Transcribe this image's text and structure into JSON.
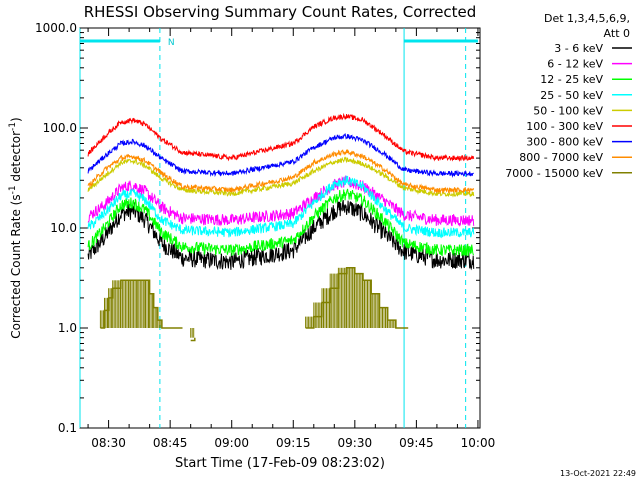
{
  "chart_data": {
    "type": "line",
    "title": "RHESSI Observing Summary Count Rates, Corrected",
    "xlabel": "Start Time (17-Feb-09 08:23:02)",
    "ylabel_main": "Corrected Count Rate (s",
    "ylabel_sup1": "-1",
    "ylabel_mid": " detector",
    "ylabel_sup2": "-1",
    "ylabel_end": ")",
    "y_scale": "log",
    "ylim": [
      0.1,
      1000
    ],
    "xlim": [
      "08:23:02",
      "10:00:30"
    ],
    "y_ticks": [
      "1000.0",
      "100.0",
      "10.0",
      "1.0",
      "0.1"
    ],
    "x_ticks": [
      "08:30",
      "08:45",
      "09:00",
      "09:15",
      "09:30",
      "09:45",
      "10:00"
    ],
    "legend_header_1": "Det 1,3,4,5,6,9,",
    "legend_header_2": "Att 0",
    "legend_position": "right",
    "footer_date": "13-Oct-2021 22:49",
    "night_bar_label": "N",
    "night_intervals": [
      [
        "08:23:02",
        "08:42:30"
      ],
      [
        "09:42:00",
        "10:00:00"
      ]
    ],
    "night_markers": [
      "08:23:02",
      "08:42:30",
      "09:42:00",
      "09:57:00"
    ],
    "series": [
      {
        "name": "3 - 6 keV",
        "color": "#000000",
        "points": [
          [
            "08:25",
            5.2
          ],
          [
            "08:29",
            8
          ],
          [
            "08:33",
            14
          ],
          [
            "08:36",
            15
          ],
          [
            "08:39",
            12
          ],
          [
            "08:43",
            7
          ],
          [
            "08:48",
            5
          ],
          [
            "09:00",
            4.6
          ],
          [
            "09:15",
            6
          ],
          [
            "09:20",
            10
          ],
          [
            "09:25",
            15
          ],
          [
            "09:28",
            16.5
          ],
          [
            "09:32",
            14
          ],
          [
            "09:37",
            9
          ],
          [
            "09:42",
            5.8
          ],
          [
            "09:50",
            4.8
          ],
          [
            "09:59",
            4.8
          ]
        ]
      },
      {
        "name": "6 - 12 keV",
        "color": "#ff00ff",
        "points": [
          [
            "08:25",
            13
          ],
          [
            "08:29",
            17
          ],
          [
            "08:33",
            25
          ],
          [
            "08:36",
            27
          ],
          [
            "08:39",
            23
          ],
          [
            "08:43",
            16
          ],
          [
            "08:48",
            12.5
          ],
          [
            "09:00",
            12
          ],
          [
            "09:15",
            14
          ],
          [
            "09:20",
            20
          ],
          [
            "09:25",
            27
          ],
          [
            "09:28",
            29
          ],
          [
            "09:32",
            26
          ],
          [
            "09:37",
            19
          ],
          [
            "09:42",
            13.5
          ],
          [
            "09:50",
            12
          ],
          [
            "09:59",
            12
          ]
        ]
      },
      {
        "name": "12 - 25 keV",
        "color": "#00ff00",
        "points": [
          [
            "08:25",
            6.5
          ],
          [
            "08:29",
            10
          ],
          [
            "08:33",
            17
          ],
          [
            "08:36",
            18
          ],
          [
            "08:39",
            15
          ],
          [
            "08:43",
            9
          ],
          [
            "08:48",
            6.5
          ],
          [
            "09:00",
            6
          ],
          [
            "09:15",
            7.5
          ],
          [
            "09:20",
            13
          ],
          [
            "09:25",
            20
          ],
          [
            "09:28",
            22
          ],
          [
            "09:32",
            19
          ],
          [
            "09:37",
            12
          ],
          [
            "09:42",
            7
          ],
          [
            "09:50",
            6
          ],
          [
            "09:59",
            6
          ]
        ]
      },
      {
        "name": "25 - 50 keV",
        "color": "#00ffff",
        "points": [
          [
            "08:25",
            10
          ],
          [
            "08:29",
            14
          ],
          [
            "08:33",
            21
          ],
          [
            "08:36",
            22
          ],
          [
            "08:39",
            19
          ],
          [
            "08:43",
            12
          ],
          [
            "08:48",
            9.5
          ],
          [
            "09:00",
            9
          ],
          [
            "09:15",
            11
          ],
          [
            "09:20",
            18
          ],
          [
            "09:25",
            28
          ],
          [
            "09:28",
            30
          ],
          [
            "09:32",
            26
          ],
          [
            "09:37",
            16
          ],
          [
            "09:42",
            10
          ],
          [
            "09:50",
            9
          ],
          [
            "09:59",
            9
          ]
        ]
      },
      {
        "name": "50 - 100 keV",
        "color": "#cccc00",
        "points": [
          [
            "08:25",
            24
          ],
          [
            "08:29",
            33
          ],
          [
            "08:33",
            45
          ],
          [
            "08:36",
            47
          ],
          [
            "08:39",
            42
          ],
          [
            "08:43",
            31
          ],
          [
            "08:48",
            24
          ],
          [
            "09:00",
            22
          ],
          [
            "09:15",
            28
          ],
          [
            "09:20",
            37
          ],
          [
            "09:25",
            46
          ],
          [
            "09:28",
            48
          ],
          [
            "09:32",
            44
          ],
          [
            "09:37",
            34
          ],
          [
            "09:42",
            25
          ],
          [
            "09:50",
            22
          ],
          [
            "09:59",
            22
          ]
        ]
      },
      {
        "name": "100 - 300 keV",
        "color": "#ff0000",
        "points": [
          [
            "08:25",
            55
          ],
          [
            "08:29",
            82
          ],
          [
            "08:33",
            115
          ],
          [
            "08:36",
            120
          ],
          [
            "08:39",
            108
          ],
          [
            "08:43",
            77
          ],
          [
            "08:48",
            57
          ],
          [
            "09:00",
            50
          ],
          [
            "09:15",
            70
          ],
          [
            "09:20",
            103
          ],
          [
            "09:25",
            127
          ],
          [
            "09:28",
            131
          ],
          [
            "09:32",
            120
          ],
          [
            "09:37",
            86
          ],
          [
            "09:42",
            58
          ],
          [
            "09:50",
            50
          ],
          [
            "09:59",
            50
          ]
        ]
      },
      {
        "name": "300 - 800 keV",
        "color": "#0000ff",
        "points": [
          [
            "08:25",
            37
          ],
          [
            "08:29",
            52
          ],
          [
            "08:33",
            70
          ],
          [
            "08:36",
            73
          ],
          [
            "08:39",
            66
          ],
          [
            "08:43",
            49
          ],
          [
            "08:48",
            37
          ],
          [
            "09:00",
            35
          ],
          [
            "09:15",
            46
          ],
          [
            "09:20",
            64
          ],
          [
            "09:25",
            80
          ],
          [
            "09:28",
            83
          ],
          [
            "09:32",
            75
          ],
          [
            "09:37",
            56
          ],
          [
            "09:42",
            38
          ],
          [
            "09:50",
            35
          ],
          [
            "09:59",
            35
          ]
        ]
      },
      {
        "name": "800 - 7000 keV",
        "color": "#ff8c00",
        "points": [
          [
            "08:25",
            26
          ],
          [
            "08:29",
            38
          ],
          [
            "08:33",
            50
          ],
          [
            "08:36",
            52
          ],
          [
            "08:39",
            47
          ],
          [
            "08:43",
            35
          ],
          [
            "08:48",
            26
          ],
          [
            "09:00",
            24
          ],
          [
            "09:15",
            32
          ],
          [
            "09:20",
            45
          ],
          [
            "09:25",
            55
          ],
          [
            "09:28",
            58
          ],
          [
            "09:32",
            52
          ],
          [
            "09:37",
            39
          ],
          [
            "09:42",
            27
          ],
          [
            "09:50",
            24
          ],
          [
            "09:59",
            24
          ]
        ]
      },
      {
        "name": "7000 - 15000 keV",
        "color": "#808000",
        "segments": [
          [
            [
              "08:28",
              1.0
            ],
            [
              "08:29",
              1.5
            ],
            [
              "08:30",
              2.0
            ],
            [
              "08:31",
              2.5
            ],
            [
              "08:33",
              3.0
            ],
            [
              "08:35",
              3.0
            ],
            [
              "08:37",
              3.0
            ],
            [
              "08:39",
              3.0
            ],
            [
              "08:40",
              2.2
            ],
            [
              "08:41",
              1.6
            ],
            [
              "08:42",
              1.2
            ],
            [
              "08:43",
              1.0
            ],
            [
              "08:45",
              1.0
            ],
            [
              "08:48",
              1.0
            ]
          ],
          [
            [
              "08:50",
              0.75
            ],
            [
              "08:51",
              0.8
            ]
          ],
          [
            [
              "09:18",
              1.0
            ],
            [
              "09:20",
              1.3
            ],
            [
              "09:22",
              1.8
            ],
            [
              "09:24",
              2.5
            ],
            [
              "09:26",
              3.5
            ],
            [
              "09:28",
              4.0
            ],
            [
              "09:30",
              3.5
            ],
            [
              "09:32",
              3.0
            ],
            [
              "09:34",
              2.2
            ],
            [
              "09:36",
              1.6
            ],
            [
              "09:38",
              1.2
            ],
            [
              "09:40",
              1.0
            ],
            [
              "09:43",
              1.0
            ]
          ]
        ]
      }
    ]
  }
}
